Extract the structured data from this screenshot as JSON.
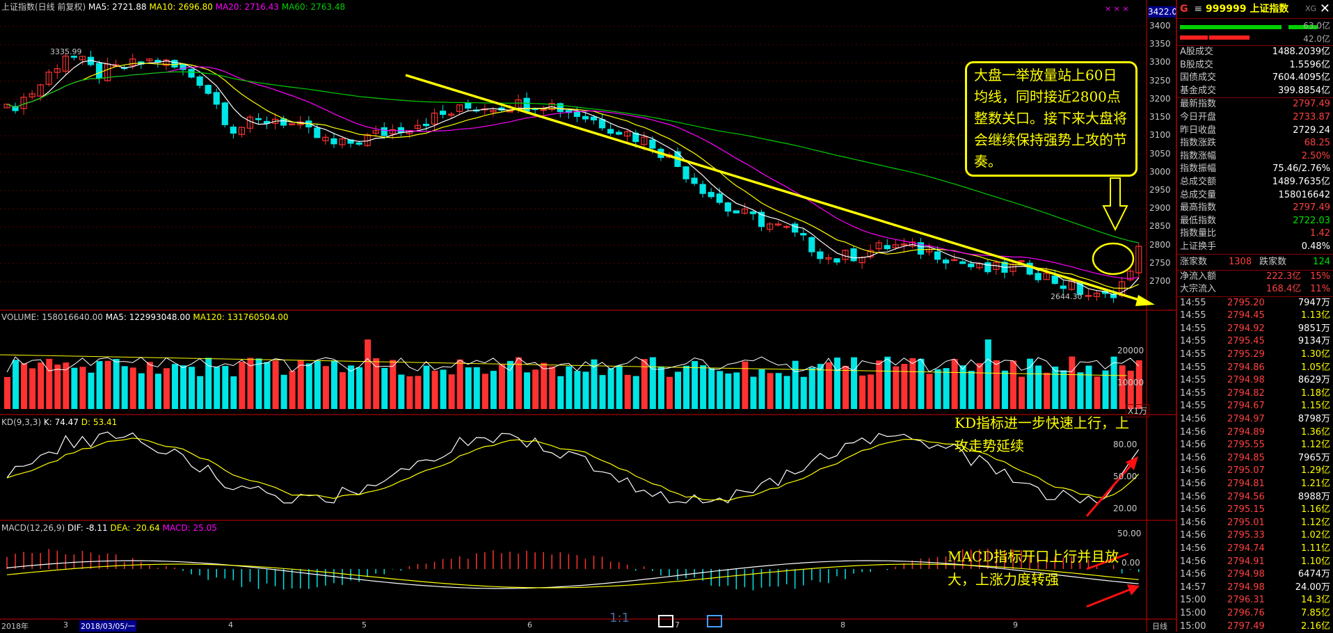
{
  "header": {
    "index_title": "上证指数(日线 前复权)",
    "ma5": "MA5: 2721.88",
    "ma10": "MA10: 2696.80",
    "ma20": "MA20: 2716.43",
    "ma60": "MA60: 2763.48",
    "top_right_value": "3422.0"
  },
  "price_axis": [
    "3400",
    "3350",
    "3300",
    "3250",
    "3200",
    "3150",
    "3100",
    "3050",
    "3000",
    "2950",
    "2900",
    "2850",
    "2800",
    "2750",
    "2700"
  ],
  "price_markers": {
    "high": "3335.99",
    "low": "2644.30"
  },
  "volume_panel": {
    "label": "VOLUME: 158016640.00",
    "ma5": "MA5: 122993048.00",
    "ma120": "MA120: 131760504.00",
    "axis": [
      "20000",
      "10000"
    ],
    "unit": "X1万"
  },
  "kd_panel": {
    "label": "KD(9,3,3)",
    "k": "K: 74.47",
    "d": "D: 53.41",
    "axis": [
      "80.00",
      "50.00",
      "20.00"
    ]
  },
  "macd_panel": {
    "label": "MACD(12,26,9)",
    "dif": "DIF: -8.11",
    "dea": "DEA: -20.64",
    "macd": "MACD: 25.05",
    "axis": [
      "50.00",
      "0.00"
    ]
  },
  "date_axis": [
    "2018年",
    "3",
    "2018/03/05/一",
    "4",
    "5",
    "6",
    "7",
    "8",
    "9"
  ],
  "period_label": "日线",
  "ratio_label": "1:1",
  "annotations": {
    "main": "大盘一举放量站上60日均线，同时接近2800点整数关口。接下来大盘将会继续保持强势上攻的节奏。",
    "kd": "KD指标进一步快速上行，上攻走势延续",
    "macd": "MACD指标开口上行并且放大，上涨力度转强"
  },
  "side": {
    "code_prefix": "G",
    "code": "999999",
    "name": "上证指数",
    "xg": "XG",
    "bar_pct_top": "63.0亿",
    "bar_pct_bottom": "42.0亿",
    "volumes": [
      {
        "k": "A股成交",
        "v": "1488.2039亿"
      },
      {
        "k": "B股成交",
        "v": "1.5596亿"
      },
      {
        "k": "国债成交",
        "v": "7604.4095亿"
      },
      {
        "k": "基金成交",
        "v": "399.8854亿"
      }
    ],
    "stats": [
      {
        "k": "最新指数",
        "v": "2797.49",
        "c": "red"
      },
      {
        "k": "今日开盘",
        "v": "2733.87",
        "c": "red"
      },
      {
        "k": "昨日收盘",
        "v": "2729.24",
        "c": "wht"
      },
      {
        "k": "指数涨跌",
        "v": "68.25",
        "c": "red"
      },
      {
        "k": "指数涨幅",
        "v": "2.50%",
        "c": "red"
      },
      {
        "k": "指数振幅",
        "v": "75.46/2.76%",
        "c": "wht"
      },
      {
        "k": "总成交额",
        "v": "1489.7635亿",
        "c": "wht"
      },
      {
        "k": "总成交量",
        "v": "158016642",
        "c": "wht"
      },
      {
        "k": "最高指数",
        "v": "2797.49",
        "c": "red"
      },
      {
        "k": "最低指数",
        "v": "2722.03",
        "c": "grn"
      },
      {
        "k": "指数量比",
        "v": "1.42",
        "c": "red"
      },
      {
        "k": "上证换手",
        "v": "0.48%",
        "c": "wht"
      }
    ],
    "up_label": "涨家数",
    "up_count": "1308",
    "down_label": "跌家数",
    "down_count": "124",
    "flows": [
      {
        "k": "净流入额",
        "v": "222.3亿",
        "p": "15%"
      },
      {
        "k": "大宗流入",
        "v": "168.4亿",
        "p": "11%"
      }
    ],
    "ticks": [
      {
        "t": "14:55",
        "p": "2795.20",
        "q": "7947万",
        "c": "wht"
      },
      {
        "t": "14:55",
        "p": "2794.45",
        "q": "1.13亿",
        "c": "yel"
      },
      {
        "t": "14:55",
        "p": "2794.92",
        "q": "9851万",
        "c": "wht"
      },
      {
        "t": "14:55",
        "p": "2795.45",
        "q": "9134万",
        "c": "wht"
      },
      {
        "t": "14:55",
        "p": "2795.29",
        "q": "1.30亿",
        "c": "yel"
      },
      {
        "t": "14:55",
        "p": "2794.86",
        "q": "1.05亿",
        "c": "yel"
      },
      {
        "t": "14:55",
        "p": "2794.98",
        "q": "8629万",
        "c": "wht"
      },
      {
        "t": "14:55",
        "p": "2794.82",
        "q": "1.18亿",
        "c": "yel"
      },
      {
        "t": "14:55",
        "p": "2794.67",
        "q": "1.15亿",
        "c": "yel"
      },
      {
        "t": "14:56",
        "p": "2794.97",
        "q": "8798万",
        "c": "wht"
      },
      {
        "t": "14:56",
        "p": "2794.89",
        "q": "1.36亿",
        "c": "yel"
      },
      {
        "t": "14:56",
        "p": "2795.55",
        "q": "1.12亿",
        "c": "yel"
      },
      {
        "t": "14:56",
        "p": "2794.85",
        "q": "7965万",
        "c": "wht"
      },
      {
        "t": "14:56",
        "p": "2795.07",
        "q": "1.29亿",
        "c": "yel"
      },
      {
        "t": "14:56",
        "p": "2794.81",
        "q": "1.21亿",
        "c": "yel"
      },
      {
        "t": "14:56",
        "p": "2794.56",
        "q": "8988万",
        "c": "wht"
      },
      {
        "t": "14:56",
        "p": "2795.15",
        "q": "1.16亿",
        "c": "yel"
      },
      {
        "t": "14:56",
        "p": "2795.01",
        "q": "1.12亿",
        "c": "yel"
      },
      {
        "t": "14:56",
        "p": "2795.33",
        "q": "1.02亿",
        "c": "yel"
      },
      {
        "t": "14:56",
        "p": "2794.74",
        "q": "1.11亿",
        "c": "yel"
      },
      {
        "t": "14:56",
        "p": "2794.91",
        "q": "1.10亿",
        "c": "yel"
      },
      {
        "t": "14:56",
        "p": "2794.98",
        "q": "6474万",
        "c": "wht"
      },
      {
        "t": "14:57",
        "p": "2794.98",
        "q": "24.00万",
        "c": "wht"
      },
      {
        "t": "15:00",
        "p": "2796.31",
        "q": "14.3亿",
        "c": "yel"
      },
      {
        "t": "15:00",
        "p": "2796.76",
        "q": "7.85亿",
        "c": "yel"
      },
      {
        "t": "15:00",
        "p": "2797.49",
        "q": "2.16亿",
        "c": "yel"
      }
    ]
  },
  "colors": {
    "up": "#ff3232",
    "down": "#00e5e5",
    "ma5": "#ffffff",
    "ma10": "#ffff00",
    "ma20": "#ff00ff",
    "ma60": "#00d000",
    "grid": "#8a0000",
    "trend": "#ffff00"
  }
}
